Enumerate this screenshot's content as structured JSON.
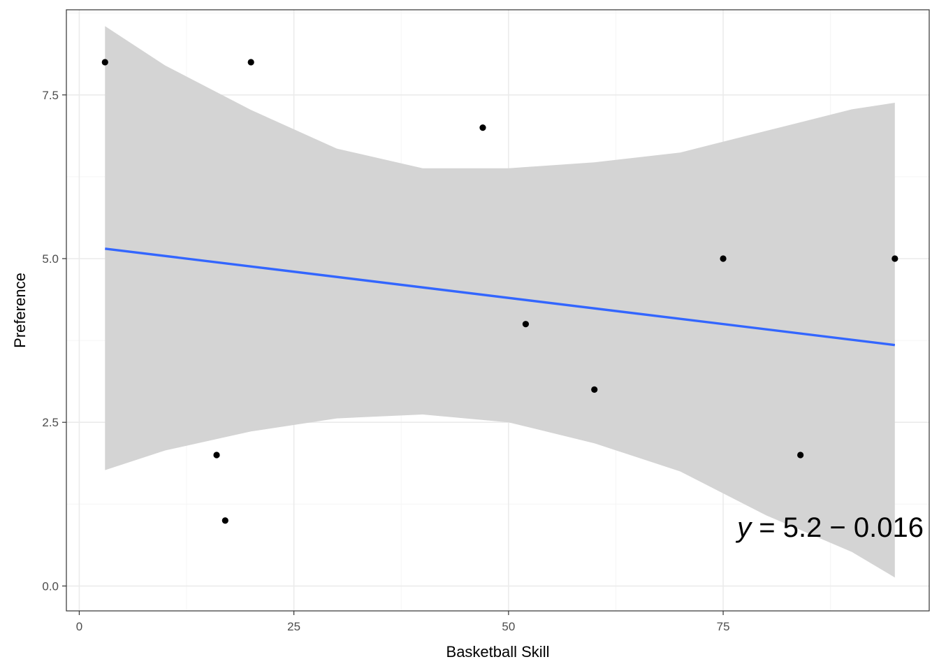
{
  "chart_data": {
    "type": "scatter",
    "title": "",
    "xlabel": "Basketball Skill",
    "ylabel": "Preference",
    "xlim": [
      -1.5,
      99
    ],
    "ylim": [
      -0.38,
      8.8
    ],
    "x_ticks": [
      {
        "value": 0,
        "label": "0"
      },
      {
        "value": 25,
        "label": "25"
      },
      {
        "value": 50,
        "label": "50"
      },
      {
        "value": 75,
        "label": "75"
      }
    ],
    "y_ticks": [
      {
        "value": 0,
        "label": "0.0"
      },
      {
        "value": 2.5,
        "label": "2.5"
      },
      {
        "value": 5,
        "label": "5.0"
      },
      {
        "value": 7.5,
        "label": "7.5"
      }
    ],
    "grid": true,
    "points": [
      {
        "x": 3,
        "y": 8
      },
      {
        "x": 20,
        "y": 8
      },
      {
        "x": 47,
        "y": 7
      },
      {
        "x": 16,
        "y": 2
      },
      {
        "x": 17,
        "y": 1
      },
      {
        "x": 52,
        "y": 4
      },
      {
        "x": 60,
        "y": 3
      },
      {
        "x": 75,
        "y": 5
      },
      {
        "x": 84,
        "y": 2
      },
      {
        "x": 95,
        "y": 5
      }
    ],
    "fit": {
      "method": "lm",
      "intercept": 5.2,
      "slope": -0.016,
      "x_range": [
        3,
        95
      ],
      "confidence_band": [
        {
          "x": 3,
          "lo": 1.77,
          "hi": 8.55
        },
        {
          "x": 10,
          "lo": 2.07,
          "hi": 7.95
        },
        {
          "x": 20,
          "lo": 2.36,
          "hi": 7.27
        },
        {
          "x": 30,
          "lo": 2.56,
          "hi": 6.68
        },
        {
          "x": 40,
          "lo": 2.62,
          "hi": 6.38
        },
        {
          "x": 50,
          "lo": 2.5,
          "hi": 6.38
        },
        {
          "x": 60,
          "lo": 2.18,
          "hi": 6.47
        },
        {
          "x": 70,
          "lo": 1.75,
          "hi": 6.62
        },
        {
          "x": 80,
          "lo": 1.08,
          "hi": 6.95
        },
        {
          "x": 90,
          "lo": 0.52,
          "hi": 7.28
        },
        {
          "x": 95,
          "lo": 0.13,
          "hi": 7.38
        }
      ]
    },
    "equation": {
      "lhs": "y",
      "rhs": " = 5.2 − 0.016"
    },
    "colors": {
      "points": "#000000",
      "fit_line": "#3366ff",
      "band": "#d4d4d4",
      "grid_major": "#ebebeb",
      "grid_minor": "#f5f5f5",
      "panel_border": "#333333"
    }
  }
}
